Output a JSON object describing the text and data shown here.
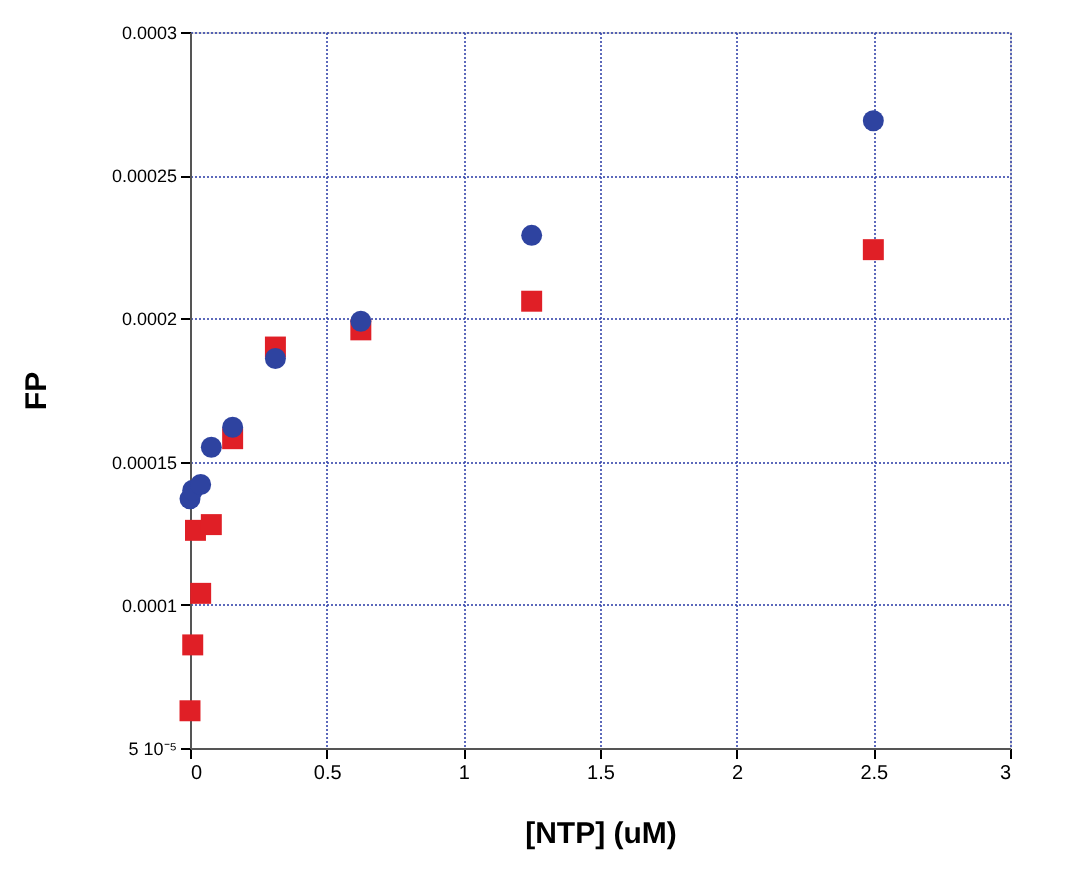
{
  "chart_data": {
    "type": "scatter",
    "xlabel": "[NTP] (uM)",
    "ylabel": "FP",
    "xlim": [
      0,
      3
    ],
    "xticks": [
      0,
      0.5,
      1,
      1.5,
      2,
      2.5,
      3
    ],
    "ylim": [
      5e-05,
      0.0003
    ],
    "yticks": [
      {
        "value": 5e-05,
        "label": "5 10⁻⁵"
      },
      0.0001,
      0.00015,
      0.0002,
      0.00025,
      0.0003
    ],
    "grid": true,
    "series": [
      {
        "color": "#e01f26",
        "marker": "square",
        "x": [
          0,
          0.01,
          0.02,
          0.039,
          0.078,
          0.156,
          0.3125,
          0.625,
          1.25,
          2.5
        ],
        "values": [
          6.3e-05,
          8.6e-05,
          0.000126,
          0.000104,
          0.000128,
          0.000158,
          0.00019,
          0.000196,
          0.000206,
          0.000224
        ]
      },
      {
        "color": "#2e43a0",
        "marker": "circle",
        "x": [
          0,
          0.01,
          0.039,
          0.078,
          0.156,
          0.3125,
          0.625,
          1.25,
          2.5
        ],
        "values": [
          0.000137,
          0.00014,
          0.000142,
          0.000155,
          0.000162,
          0.000186,
          0.000199,
          0.000229,
          0.000269
        ]
      }
    ]
  }
}
